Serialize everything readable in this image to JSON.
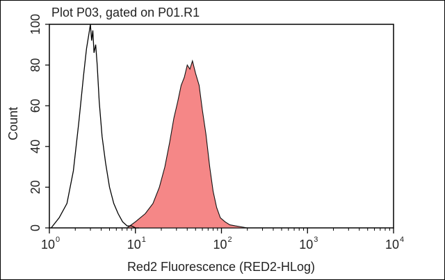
{
  "chart_data": {
    "type": "area",
    "title": "Plot P03, gated on P01.R1",
    "xlabel": "Red2 Fluorescence (RED2-HLog)",
    "ylabel": "Count",
    "x_scale": "log",
    "xlim": [
      1,
      10000
    ],
    "ylim": [
      0,
      100
    ],
    "x_ticks": [
      {
        "base": "10",
        "exp": "0"
      },
      {
        "base": "10",
        "exp": "1"
      },
      {
        "base": "10",
        "exp": "2"
      },
      {
        "base": "10",
        "exp": "3"
      },
      {
        "base": "10",
        "exp": "4"
      }
    ],
    "y_ticks": [
      "0",
      "20",
      "40",
      "60",
      "80",
      "100"
    ],
    "grid": false,
    "series": [
      {
        "style": "outline",
        "color": "#000000",
        "x": [
          1.05,
          1.3,
          1.6,
          1.9,
          2.2,
          2.5,
          2.7,
          2.9,
          3.0,
          3.1,
          3.2,
          3.3,
          3.45,
          3.6,
          3.8,
          4.1,
          4.5,
          5.0,
          5.6,
          6.3,
          7.1,
          8.0,
          9.0,
          10.0,
          11.0
        ],
        "y": [
          0,
          5,
          12,
          28,
          52,
          75,
          88,
          96,
          100,
          92,
          97,
          86,
          90,
          80,
          62,
          45,
          32,
          20,
          12,
          7,
          3,
          1,
          1,
          0,
          0
        ]
      },
      {
        "style": "filled",
        "color": "#f47a7a",
        "x": [
          8,
          10,
          13,
          16,
          19,
          22,
          25,
          28,
          31,
          34,
          37,
          40,
          43,
          46,
          50,
          55,
          60,
          66,
          73,
          80,
          88,
          97,
          110,
          125,
          145,
          170,
          200
        ],
        "y": [
          0,
          3,
          7,
          12,
          20,
          30,
          42,
          54,
          62,
          70,
          74,
          80,
          78,
          82,
          76,
          70,
          58,
          46,
          30,
          18,
          10,
          5,
          3,
          1.5,
          1,
          0.5,
          0
        ]
      }
    ]
  }
}
